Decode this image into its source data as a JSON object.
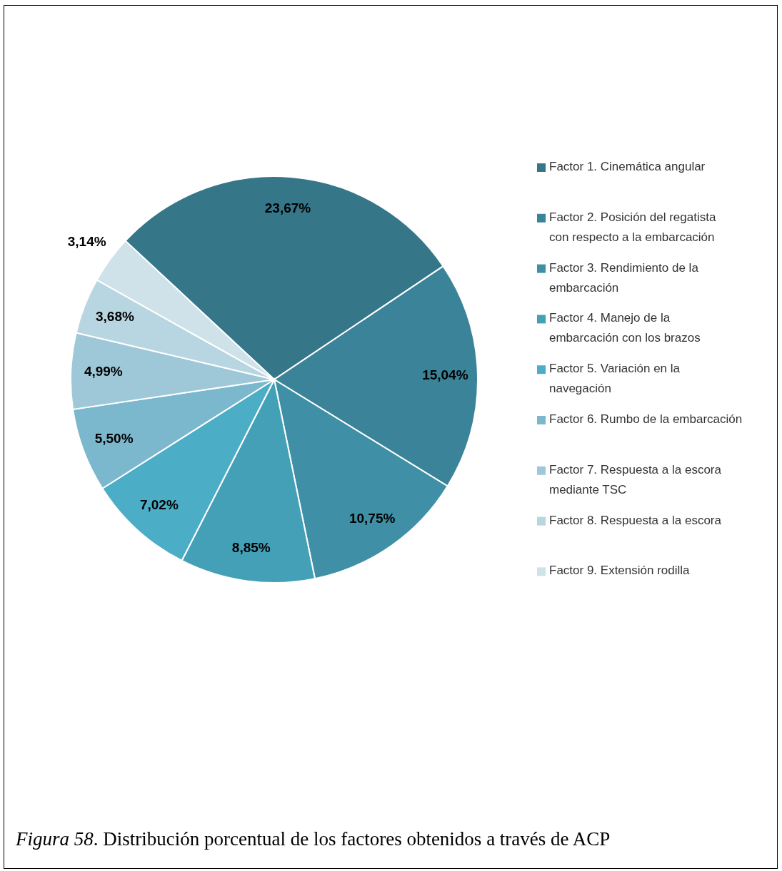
{
  "chart_data": {
    "type": "pie",
    "categories": [
      "Factor 1. Cinemática angular",
      "Factor 2. Posición del regatista con respecto a la embarcación",
      "Factor 3. Rendimiento de la embarcación",
      "Factor 4. Manejo de la embarcación con los brazos",
      "Factor 5. Variación en la navegación",
      "Factor 6. Rumbo de la embarcación",
      "Factor 7. Respuesta a la escora mediante TSC",
      "Factor 8. Respuesta a la escora",
      "Factor 9. Extensión rodilla"
    ],
    "values": [
      23.67,
      15.04,
      10.75,
      8.85,
      7.02,
      5.5,
      4.99,
      3.68,
      3.14
    ],
    "value_labels": [
      "23,67%",
      "15,04%",
      "10,75%",
      "8,85%",
      "7,02%",
      "5,50%",
      "4,99%",
      "3,68%",
      "3,14%"
    ],
    "colors": [
      "#357689",
      "#3a8399",
      "#3f90a6",
      "#44a0b7",
      "#4badc6",
      "#7cb8cd",
      "#9ec8d8",
      "#b8d6e2",
      "#cfe1e9"
    ],
    "legend": "right",
    "annotations": [
      "Figura 58. Distribución porcentual de los factores obtenidos a través de ACP"
    ]
  }
}
